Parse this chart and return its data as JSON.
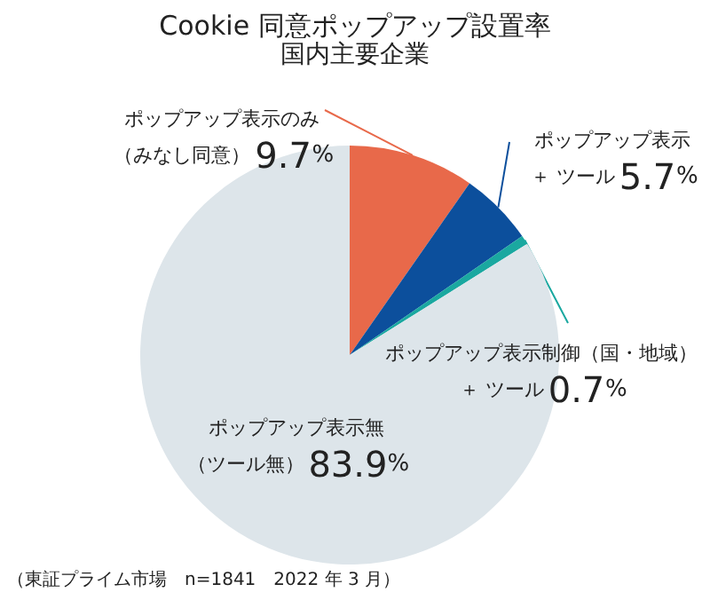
{
  "chart_data": {
    "type": "pie",
    "title": "Cookie 同意ポップアップ設置率",
    "subtitle": "国内主要企業",
    "categories": [
      "ポップアップ表示のみ（みなし同意）",
      "ポップアップ表示＋ ツール",
      "ポップアップ表示制御（国・地域）＋ ツール",
      "ポップアップ表示無（ツール無）"
    ],
    "values": [
      9.7,
      5.7,
      0.7,
      83.9
    ],
    "value_labels": [
      "9.7%",
      "5.7%",
      "0.7%",
      "83.9%"
    ],
    "colors": [
      "#e8694a",
      "#0c4f9c",
      "#1aa8a0",
      "#dde5ea"
    ],
    "legend": false,
    "annotations": [
      "（東証プライム市場　n=1841　2022 年 3 月）"
    ]
  }
}
